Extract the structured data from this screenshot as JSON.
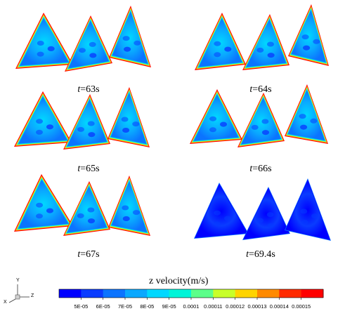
{
  "panels": [
    {
      "time_label": "t=63s",
      "t_var": "t",
      "t_value": "=63s",
      "level": 0.55
    },
    {
      "time_label": "t=64s",
      "t_var": "t",
      "t_value": "=64s",
      "level": 0.55
    },
    {
      "time_label": "t=65s",
      "t_var": "t",
      "t_value": "=65s",
      "level": 0.45
    },
    {
      "time_label": "t=66s",
      "t_var": "t",
      "t_value": "=66s",
      "level": 0.4
    },
    {
      "time_label": "t=67s",
      "t_var": "t",
      "t_value": "=67s",
      "level": 0.3
    },
    {
      "time_label": "t=69.4s",
      "t_var": "t",
      "t_value": "=69.4s",
      "level": 0.05
    }
  ],
  "colorbar": {
    "title": "z velocity(m/s)",
    "ticks": [
      "5E-05",
      "6E-05",
      "7E-05",
      "8E-05",
      "9E-05",
      "0.0001",
      "0.00011",
      "0.00012",
      "0.00013",
      "0.00014",
      "0.00015"
    ],
    "colors": [
      "#0000ff",
      "#0a3cff",
      "#0b74ff",
      "#0aa8ff",
      "#00d8ff",
      "#00f5d8",
      "#5cff8a",
      "#c8ff2a",
      "#ffd400",
      "#ff8a00",
      "#ff2a00",
      "#ff0000"
    ]
  },
  "axes_triad": {
    "x_label": "X",
    "y_label": "Y",
    "z_label": "Z"
  }
}
